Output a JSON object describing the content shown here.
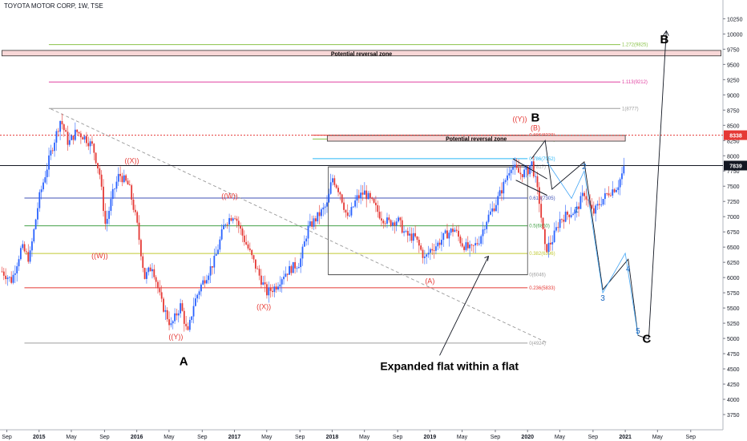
{
  "header": {
    "title": "TOYOTA MOTOR CORP, 1W, TSE"
  },
  "chart_data": {
    "type": "candlestick",
    "title": "TOYOTA MOTOR CORP, 1W, TSE",
    "ylim": [
      3500,
      10400
    ],
    "xlim": [
      2014.6,
      2022.0
    ],
    "y_ticks": [
      3750,
      4000,
      4250,
      4500,
      4750,
      5000,
      5250,
      5500,
      5750,
      6000,
      6250,
      6500,
      6750,
      7000,
      7250,
      7500,
      7750,
      8000,
      8250,
      8500,
      8750,
      9000,
      9250,
      9500,
      9750,
      10000,
      10250
    ],
    "x_ticks": [
      {
        "x": 2014.67,
        "label": "Sep"
      },
      {
        "x": 2015.0,
        "label": "2015"
      },
      {
        "x": 2015.33,
        "label": "May"
      },
      {
        "x": 2015.67,
        "label": "Sep"
      },
      {
        "x": 2016.0,
        "label": "2016"
      },
      {
        "x": 2016.33,
        "label": "May"
      },
      {
        "x": 2016.67,
        "label": "Sep"
      },
      {
        "x": 2017.0,
        "label": "2017"
      },
      {
        "x": 2017.33,
        "label": "May"
      },
      {
        "x": 2017.67,
        "label": "Sep"
      },
      {
        "x": 2018.0,
        "label": "2018"
      },
      {
        "x": 2018.33,
        "label": "May"
      },
      {
        "x": 2018.67,
        "label": "Sep"
      },
      {
        "x": 2019.0,
        "label": "2019"
      },
      {
        "x": 2019.33,
        "label": "May"
      },
      {
        "x": 2019.67,
        "label": "Sep"
      },
      {
        "x": 2020.0,
        "label": "2020"
      },
      {
        "x": 2020.33,
        "label": "May"
      },
      {
        "x": 2020.67,
        "label": "Sep"
      },
      {
        "x": 2021.0,
        "label": "2021"
      },
      {
        "x": 2021.33,
        "label": "May"
      },
      {
        "x": 2021.67,
        "label": "Sep"
      }
    ],
    "price_path": [
      [
        2014.62,
        6100
      ],
      [
        2014.72,
        5950
      ],
      [
        2014.82,
        6500
      ],
      [
        2014.9,
        6300
      ],
      [
        2015.0,
        7300
      ],
      [
        2015.12,
        8050
      ],
      [
        2015.22,
        8600
      ],
      [
        2015.3,
        8200
      ],
      [
        2015.38,
        8400
      ],
      [
        2015.47,
        8300
      ],
      [
        2015.55,
        8150
      ],
      [
        2015.62,
        7700
      ],
      [
        2015.68,
        6850
      ],
      [
        2015.75,
        7350
      ],
      [
        2015.82,
        7700
      ],
      [
        2015.92,
        7500
      ],
      [
        2016.0,
        6900
      ],
      [
        2016.08,
        6000
      ],
      [
        2016.16,
        6200
      ],
      [
        2016.25,
        5600
      ],
      [
        2016.35,
        5200
      ],
      [
        2016.45,
        5550
      ],
      [
        2016.52,
        5050
      ],
      [
        2016.58,
        5550
      ],
      [
        2016.65,
        5850
      ],
      [
        2016.72,
        6050
      ],
      [
        2016.8,
        6300
      ],
      [
        2016.9,
        6900
      ],
      [
        2017.0,
        7050
      ],
      [
        2017.08,
        6700
      ],
      [
        2017.16,
        6400
      ],
      [
        2017.25,
        6050
      ],
      [
        2017.33,
        5750
      ],
      [
        2017.42,
        5850
      ],
      [
        2017.5,
        6050
      ],
      [
        2017.58,
        6150
      ],
      [
        2017.67,
        6250
      ],
      [
        2017.75,
        6800
      ],
      [
        2017.85,
        7000
      ],
      [
        2017.95,
        7200
      ],
      [
        2018.0,
        7650
      ],
      [
        2018.08,
        7400
      ],
      [
        2018.16,
        6950
      ],
      [
        2018.25,
        7300
      ],
      [
        2018.33,
        7400
      ],
      [
        2018.42,
        7200
      ],
      [
        2018.5,
        7000
      ],
      [
        2018.58,
        6900
      ],
      [
        2018.67,
        6950
      ],
      [
        2018.75,
        6700
      ],
      [
        2018.85,
        6650
      ],
      [
        2018.95,
        6300
      ],
      [
        2019.0,
        6450
      ],
      [
        2019.08,
        6550
      ],
      [
        2019.16,
        6700
      ],
      [
        2019.25,
        6800
      ],
      [
        2019.33,
        6550
      ],
      [
        2019.42,
        6450
      ],
      [
        2019.5,
        6600
      ],
      [
        2019.58,
        6950
      ],
      [
        2019.67,
        7200
      ],
      [
        2019.75,
        7500
      ],
      [
        2019.83,
        7850
      ],
      [
        2019.92,
        7700
      ],
      [
        2020.0,
        7750
      ],
      [
        2020.04,
        7900
      ],
      [
        2020.08,
        7600
      ],
      [
        2020.12,
        7250
      ],
      [
        2020.18,
        6450
      ],
      [
        2020.25,
        6600
      ],
      [
        2020.33,
        6950
      ],
      [
        2020.42,
        7050
      ],
      [
        2020.5,
        7100
      ],
      [
        2020.58,
        7400
      ],
      [
        2020.67,
        7050
      ],
      [
        2020.75,
        7250
      ],
      [
        2020.83,
        7400
      ],
      [
        2020.92,
        7500
      ],
      [
        2021.0,
        7839
      ]
    ],
    "current_price": 7839,
    "prev_high_marker": 8338,
    "fib_levels": [
      {
        "label": "1.272(9825)",
        "value": 9825,
        "color": "#8bc34a"
      },
      {
        "label": "1.236(9686)",
        "value": 9686,
        "color": "#8bc34a"
      },
      {
        "label": "1.113(9212)",
        "value": 9212,
        "color": "#e040a0"
      },
      {
        "label": "1(8777)",
        "value": 8777,
        "color": "#9e9e9e"
      },
      {
        "label": "0.886(8338)",
        "value": 8338,
        "color": "#e53935"
      },
      {
        "label": "1.236(8275)",
        "value": 8275,
        "color": "#8bc34a"
      },
      {
        "label": "0.786(7952)",
        "value": 7952,
        "color": "#29b6f6"
      },
      {
        "label": "1(7817)",
        "value": 7817,
        "color": "#9e9e9e"
      },
      {
        "label": "0.618(7305)",
        "value": 7305,
        "color": "#3f51b5"
      },
      {
        "label": "0.5(6850)",
        "value": 6850,
        "color": "#43a047"
      },
      {
        "label": "0.382(6396)",
        "value": 6396,
        "color": "#c0ca33"
      },
      {
        "label": "0(6046)",
        "value": 6046,
        "color": "#9e9e9e"
      },
      {
        "label": "0.236(5833)",
        "value": 5833,
        "color": "#e53935"
      },
      {
        "label": "0(4924)",
        "value": 4924,
        "color": "#9e9e9e"
      }
    ],
    "zones": [
      {
        "label": "Potential reversal zone",
        "low": 9640,
        "high": 9730
      },
      {
        "label": "Potential reversal zone",
        "low": 8240,
        "high": 8335
      }
    ],
    "annotations": [
      {
        "text": "((X))",
        "x": 2015.95,
        "y": 7880,
        "color": "#e53935"
      },
      {
        "text": "((W))",
        "x": 2015.62,
        "y": 6320,
        "color": "#e53935"
      },
      {
        "text": "((Y))",
        "x": 2016.4,
        "y": 4990,
        "color": "#e53935"
      },
      {
        "text": "A",
        "x": 2016.48,
        "y": 4560,
        "color": "#000000"
      },
      {
        "text": "((W))",
        "x": 2016.95,
        "y": 7300,
        "color": "#e53935"
      },
      {
        "text": "((X))",
        "x": 2017.3,
        "y": 5480,
        "color": "#e53935"
      },
      {
        "text": "(A)",
        "x": 2019.0,
        "y": 5900,
        "color": "#e53935"
      },
      {
        "text": "((Y))",
        "x": 2019.92,
        "y": 8560,
        "color": "#e53935"
      },
      {
        "text": "B",
        "x": 2020.08,
        "y": 8560,
        "color": "#000000"
      },
      {
        "text": "(B)",
        "x": 2020.08,
        "y": 8420,
        "color": "#e53935"
      },
      {
        "text": "B",
        "x": 2021.4,
        "y": 9850,
        "color": "#000000"
      },
      {
        "text": "1",
        "x": 2020.5,
        "y": 7070,
        "color": "#1565c0"
      },
      {
        "text": "2",
        "x": 2020.58,
        "y": 7780,
        "color": "#1565c0"
      },
      {
        "text": "3",
        "x": 2020.77,
        "y": 5620,
        "color": "#1565c0"
      },
      {
        "text": "4",
        "x": 2021.03,
        "y": 6100,
        "color": "#1565c0"
      },
      {
        "text": "5",
        "x": 2021.13,
        "y": 5080,
        "color": "#1565c0"
      },
      {
        "text": "C",
        "x": 2021.22,
        "y": 4930,
        "color": "#000000"
      },
      {
        "text": "Expanded flat within a flat",
        "x": 2019.2,
        "y": 4480,
        "color": "#000000"
      }
    ],
    "projection": [
      [
        2020.04,
        7950
      ],
      [
        2020.18,
        8250
      ],
      [
        2020.25,
        7450
      ],
      [
        2020.58,
        7900
      ],
      [
        2020.77,
        5800
      ],
      [
        2021.03,
        6300
      ],
      [
        2021.13,
        5050
      ],
      [
        2021.24,
        4990
      ],
      [
        2021.42,
        10050
      ]
    ],
    "wedge_lines": [
      [
        [
          2019.85,
          7950
        ],
        [
          2020.2,
          7620
        ]
      ],
      [
        [
          2019.88,
          7600
        ],
        [
          2020.2,
          7350
        ]
      ]
    ],
    "trendline": [
      [
        2015.12,
        8770
      ],
      [
        2020.2,
        4930
      ]
    ]
  }
}
